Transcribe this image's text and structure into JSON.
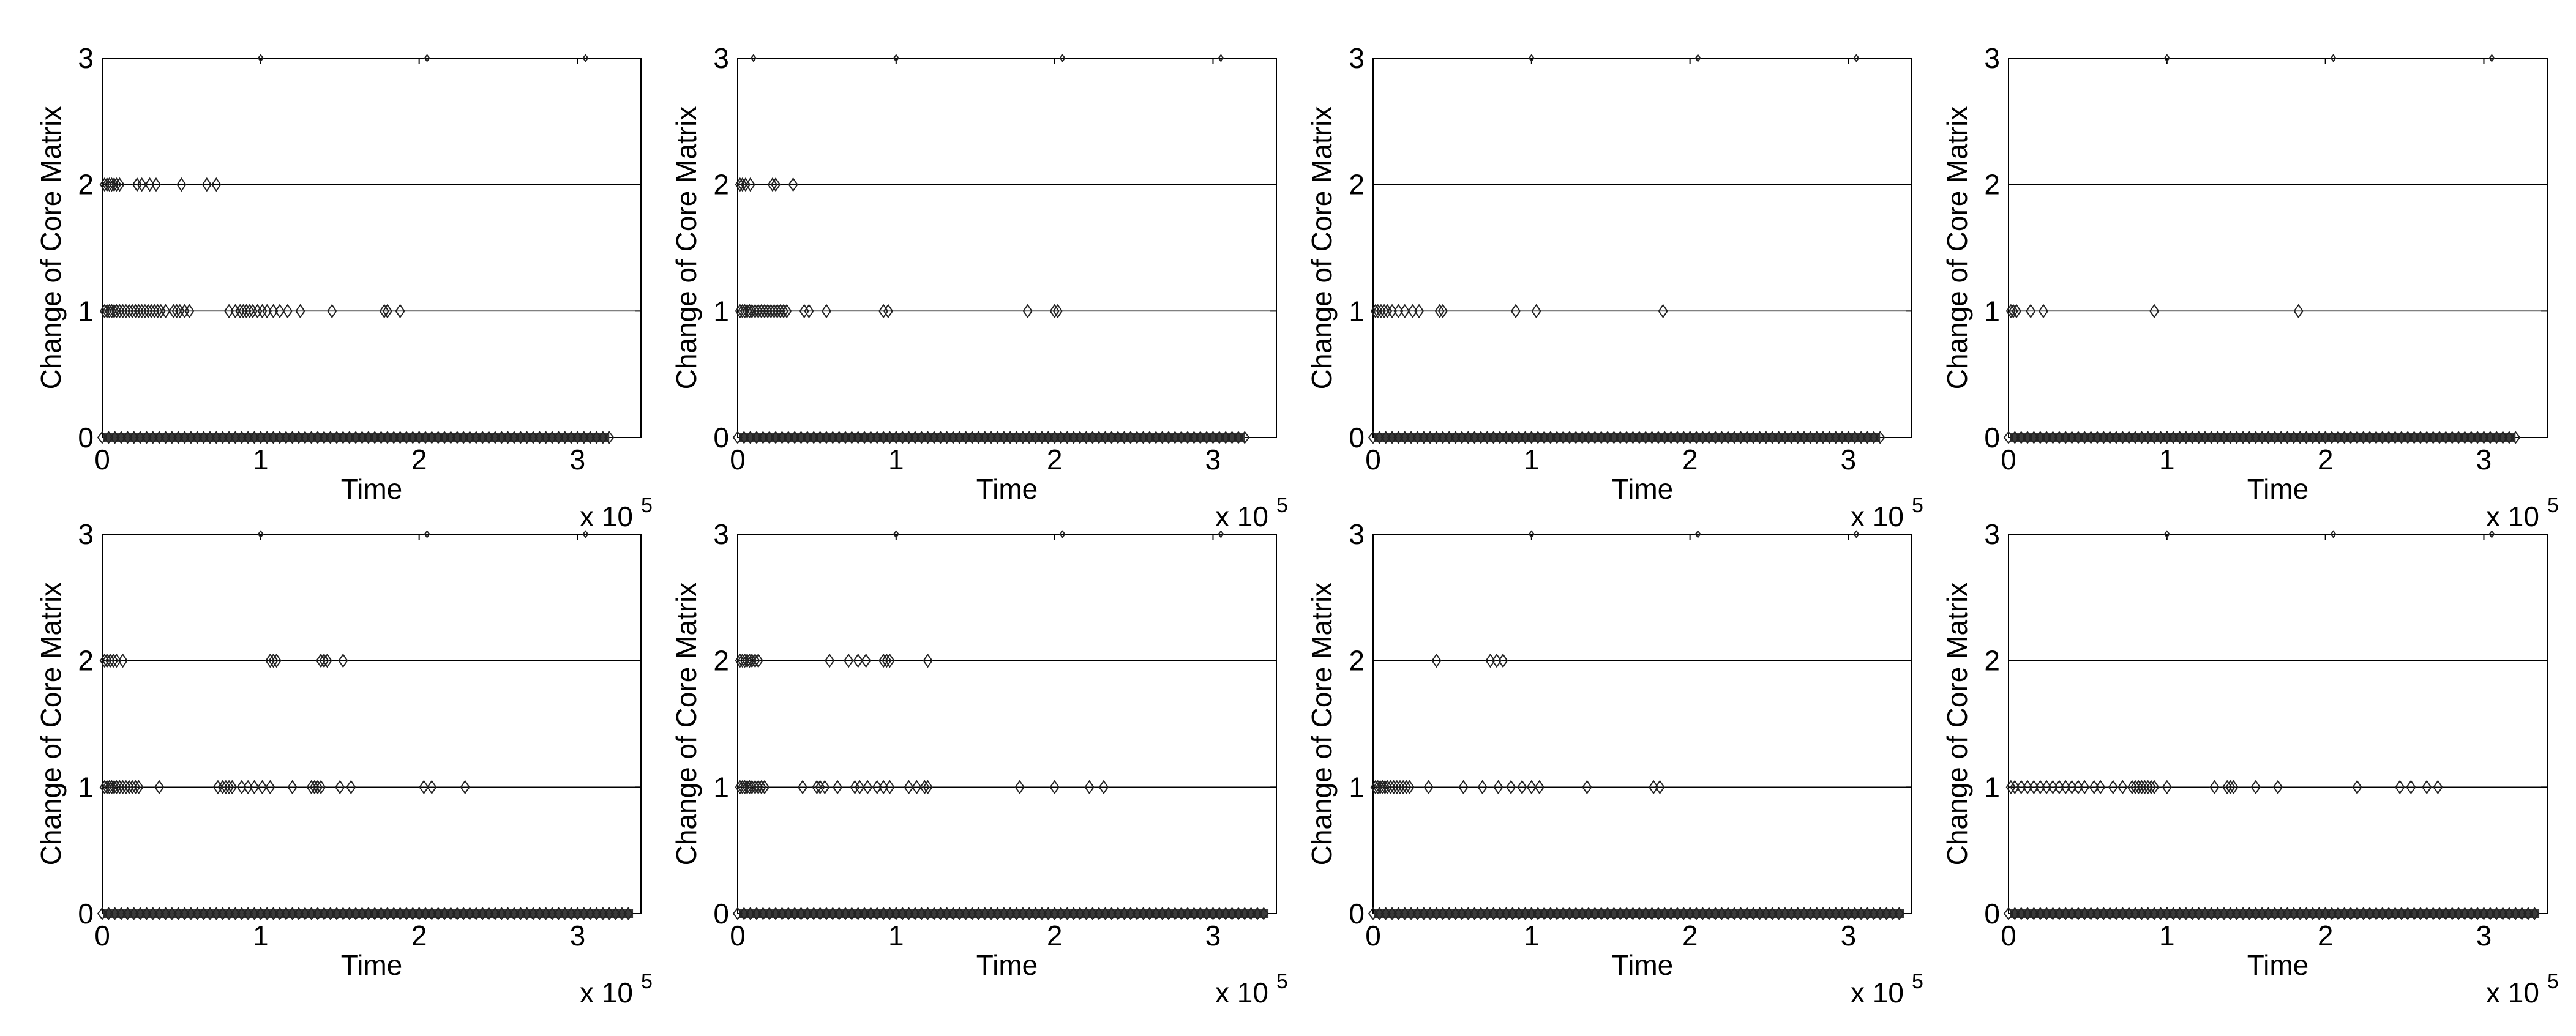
{
  "figure": {
    "rows": 2,
    "cols": 4
  },
  "chart_data": [
    {
      "type": "scatter",
      "xlabel": "Time",
      "ylabel": "Change of Core Matrix",
      "xlim": [
        0,
        340000
      ],
      "ylim": [
        0,
        3
      ],
      "x_ticks": [
        "0",
        "1",
        "2",
        "3"
      ],
      "y_ticks": [
        "0",
        "1",
        "2",
        "3"
      ],
      "x_multiplier_base": "x 10",
      "x_multiplier_exp": "5",
      "grid": "horizontal",
      "marker": "diamond",
      "x_end": 320000,
      "points": [
        {
          "v": 2,
          "x": [
            1500,
            3000,
            4500,
            6000,
            7500,
            9000,
            11000,
            22000,
            25000,
            30000,
            34000,
            50000,
            66000,
            72000
          ]
        },
        {
          "v": 1,
          "x": [
            1500,
            3000,
            4500,
            6000,
            7500,
            9000,
            11000,
            13000,
            15000,
            17000,
            19000,
            21000,
            23000,
            25000,
            27000,
            29000,
            31000,
            33000,
            35000,
            37000,
            40000,
            45000,
            47000,
            49000,
            52000,
            55000,
            80000,
            84000,
            87000,
            89000,
            91000,
            93000,
            95000,
            98000,
            101000,
            104000,
            108000,
            112000,
            117000,
            125000,
            145000,
            178000,
            180000,
            188000
          ]
        },
        {
          "v": 3,
          "x": [
            100000,
            205000,
            305000
          ]
        }
      ]
    },
    {
      "type": "scatter",
      "xlabel": "Time",
      "ylabel": "Change of Core Matrix",
      "xlim": [
        0,
        340000
      ],
      "ylim": [
        0,
        3
      ],
      "x_ticks": [
        "0",
        "1",
        "2",
        "3"
      ],
      "y_ticks": [
        "0",
        "1",
        "2",
        "3"
      ],
      "x_multiplier_base": "x 10",
      "x_multiplier_exp": "5",
      "grid": "horizontal",
      "marker": "diamond",
      "x_end": 320000,
      "points": [
        {
          "v": 3,
          "x": [
            10000,
            100000,
            205000,
            305000
          ]
        },
        {
          "v": 2,
          "x": [
            1500,
            3000,
            5000,
            8000,
            22000,
            24000,
            35000
          ]
        },
        {
          "v": 1,
          "x": [
            1500,
            3000,
            4500,
            6000,
            7500,
            9000,
            11000,
            13000,
            15000,
            17000,
            19000,
            21000,
            23000,
            25000,
            27000,
            29000,
            31000,
            42000,
            45000,
            56000,
            92000,
            95000,
            183000,
            200000,
            202000
          ]
        }
      ]
    },
    {
      "type": "scatter",
      "xlabel": "Time",
      "ylabel": "Change of Core Matrix",
      "xlim": [
        0,
        340000
      ],
      "ylim": [
        0,
        3
      ],
      "x_ticks": [
        "0",
        "1",
        "2",
        "3"
      ],
      "y_ticks": [
        "0",
        "1",
        "2",
        "3"
      ],
      "x_multiplier_base": "x 10",
      "x_multiplier_exp": "5",
      "grid": "horizontal",
      "marker": "diamond",
      "x_end": 320000,
      "points": [
        {
          "v": 3,
          "x": [
            100000,
            205000,
            305000
          ]
        },
        {
          "v": 1,
          "x": [
            1500,
            3000,
            5000,
            7000,
            9000,
            12000,
            16000,
            20000,
            25000,
            29000,
            42000,
            44000,
            90000,
            103000,
            183000
          ]
        }
      ]
    },
    {
      "type": "scatter",
      "xlabel": "Time",
      "ylabel": "Change of Core Matrix",
      "xlim": [
        0,
        340000
      ],
      "ylim": [
        0,
        3
      ],
      "x_ticks": [
        "0",
        "1",
        "2",
        "3"
      ],
      "y_ticks": [
        "0",
        "1",
        "2",
        "3"
      ],
      "x_multiplier_base": "x 10",
      "x_multiplier_exp": "5",
      "grid": "horizontal",
      "marker": "diamond",
      "x_end": 320000,
      "points": [
        {
          "v": 3,
          "x": [
            100000,
            205000,
            305000
          ]
        },
        {
          "v": 1,
          "x": [
            1500,
            3000,
            5000,
            14000,
            22000,
            92000,
            183000
          ]
        }
      ]
    },
    {
      "type": "scatter",
      "xlabel": "Time",
      "ylabel": "Change of Core Matrix",
      "xlim": [
        0,
        340000
      ],
      "ylim": [
        0,
        3
      ],
      "x_ticks": [
        "0",
        "1",
        "2",
        "3"
      ],
      "y_ticks": [
        "0",
        "1",
        "2",
        "3"
      ],
      "x_multiplier_base": "x 10",
      "x_multiplier_exp": "5",
      "grid": "horizontal",
      "marker": "diamond",
      "x_end": 335000,
      "points": [
        {
          "v": 3,
          "x": [
            100000,
            205000,
            305000
          ]
        },
        {
          "v": 2,
          "x": [
            1500,
            3000,
            5000,
            7000,
            9000,
            13000,
            106000,
            108000,
            110000,
            138000,
            140000,
            142000,
            152000
          ]
        },
        {
          "v": 1,
          "x": [
            1500,
            3000,
            4500,
            6000,
            7500,
            9000,
            11000,
            13000,
            15000,
            17000,
            19000,
            21000,
            23000,
            36000,
            73000,
            76000,
            78000,
            80000,
            82000,
            88000,
            92000,
            96000,
            101000,
            106000,
            120000,
            132000,
            134000,
            136000,
            138000,
            150000,
            157000,
            203000,
            208000,
            229000
          ]
        }
      ]
    },
    {
      "type": "scatter",
      "xlabel": "Time",
      "ylabel": "Change of Core Matrix",
      "xlim": [
        0,
        340000
      ],
      "ylim": [
        0,
        3
      ],
      "x_ticks": [
        "0",
        "1",
        "2",
        "3"
      ],
      "y_ticks": [
        "0",
        "1",
        "2",
        "3"
      ],
      "x_multiplier_base": "x 10",
      "x_multiplier_exp": "5",
      "grid": "horizontal",
      "marker": "diamond",
      "x_end": 335000,
      "points": [
        {
          "v": 3,
          "x": [
            100000,
            205000,
            305000
          ]
        },
        {
          "v": 2,
          "x": [
            1500,
            3000,
            4500,
            6000,
            7500,
            9000,
            11000,
            13000,
            58000,
            70000,
            76000,
            81000,
            92000,
            94000,
            96000,
            120000
          ]
        },
        {
          "v": 1,
          "x": [
            1500,
            3000,
            4500,
            6000,
            7500,
            9000,
            11000,
            13000,
            15000,
            17000,
            41000,
            50000,
            52000,
            55000,
            63000,
            74000,
            77000,
            82000,
            88000,
            92000,
            96000,
            108000,
            113000,
            118000,
            120000,
            178000,
            200000,
            222000,
            231000
          ]
        }
      ]
    },
    {
      "type": "scatter",
      "xlabel": "Time",
      "ylabel": "Change of Core Matrix",
      "xlim": [
        0,
        340000
      ],
      "ylim": [
        0,
        3
      ],
      "x_ticks": [
        "0",
        "1",
        "2",
        "3"
      ],
      "y_ticks": [
        "0",
        "1",
        "2",
        "3"
      ],
      "x_multiplier_base": "x 10",
      "x_multiplier_exp": "5",
      "grid": "horizontal",
      "marker": "diamond",
      "x_end": 335000,
      "points": [
        {
          "v": 3,
          "x": [
            100000,
            205000,
            305000
          ]
        },
        {
          "v": 2,
          "x": [
            40000,
            74000,
            78000,
            82000
          ]
        },
        {
          "v": 1,
          "x": [
            1500,
            3000,
            4500,
            6000,
            7500,
            9000,
            11000,
            13000,
            15000,
            17000,
            19000,
            21000,
            23000,
            35000,
            57000,
            69000,
            79000,
            87000,
            94000,
            100000,
            105000,
            135000,
            177000,
            181000
          ]
        }
      ]
    },
    {
      "type": "scatter",
      "xlabel": "Time",
      "ylabel": "Change of Core Matrix",
      "xlim": [
        0,
        340000
      ],
      "ylim": [
        0,
        3
      ],
      "x_ticks": [
        "0",
        "1",
        "2",
        "3"
      ],
      "y_ticks": [
        "0",
        "1",
        "2",
        "3"
      ],
      "x_multiplier_base": "x 10",
      "x_multiplier_exp": "5",
      "grid": "horizontal",
      "marker": "diamond",
      "x_end": 335000,
      "points": [
        {
          "v": 3,
          "x": [
            100000,
            205000,
            305000
          ]
        },
        {
          "v": 1,
          "x": [
            1500,
            4000,
            8000,
            12000,
            16000,
            20000,
            24000,
            28000,
            32000,
            36000,
            40000,
            44000,
            48000,
            54000,
            58000,
            66000,
            72000,
            78000,
            80000,
            82000,
            84000,
            86000,
            88000,
            90000,
            92000,
            100000,
            130000,
            138000,
            140000,
            142000,
            156000,
            170000,
            220000,
            247000,
            254000,
            264000,
            271000
          ]
        }
      ]
    }
  ]
}
